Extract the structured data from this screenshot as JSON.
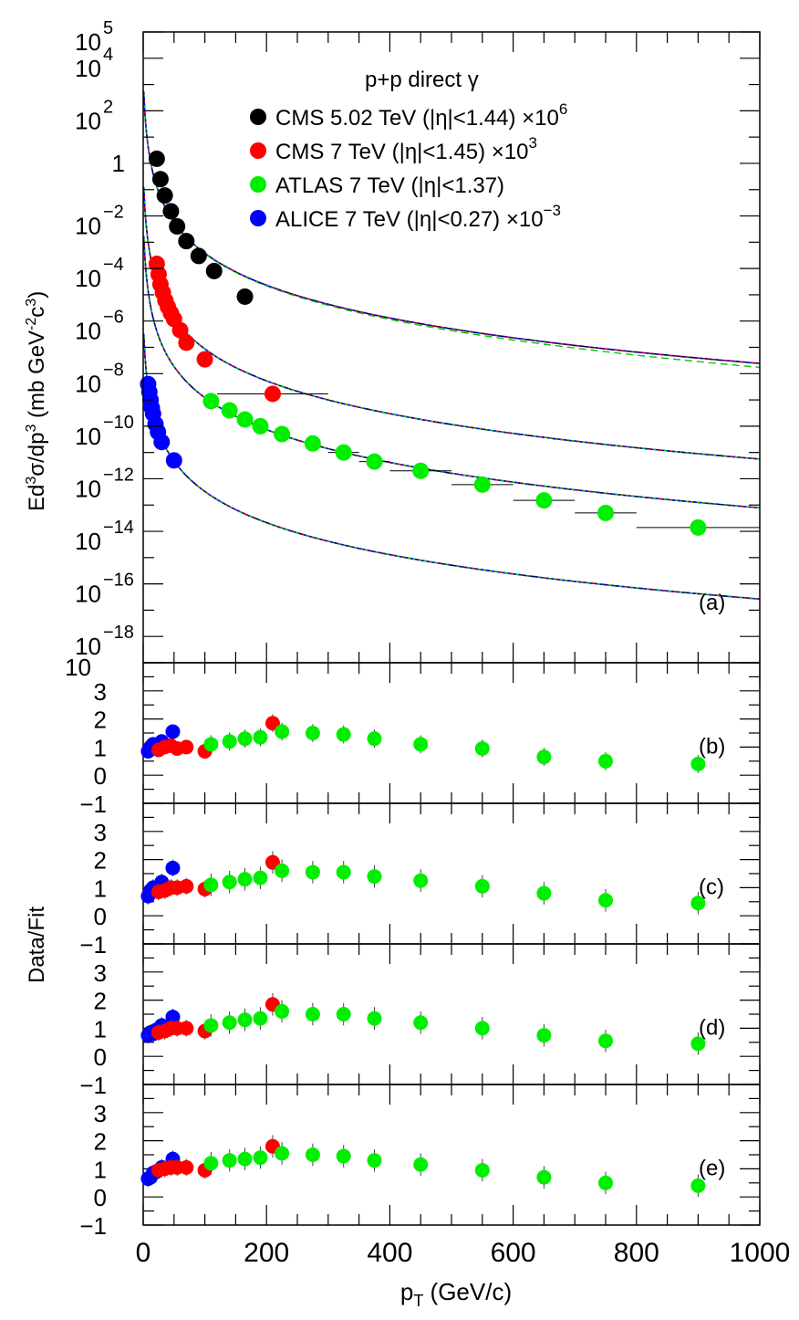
{
  "chart_data": [
    {
      "type": "scatter",
      "panel": "(a)",
      "legend_title": "p+p direct γ",
      "legend_placement": "top-right",
      "ylabel_parts": [
        "Ed",
        "3",
        "σ/dp",
        "3",
        " (mb GeV",
        "-2",
        "c",
        "3",
        ")"
      ],
      "y_scale": "log",
      "ylim": [
        1e-19,
        100000.0
      ],
      "y_ticks": [
        {
          "exp": 5,
          "label": "5"
        },
        {
          "exp": 4,
          "label": "4"
        },
        {
          "exp": 2,
          "label": "2"
        },
        {
          "exp": 0,
          "label": "1"
        },
        {
          "exp": -2,
          "label": "−2"
        },
        {
          "exp": -4,
          "label": "−4"
        },
        {
          "exp": -6,
          "label": "−6"
        },
        {
          "exp": -8,
          "label": "−8"
        },
        {
          "exp": -10,
          "label": "−10"
        },
        {
          "exp": -12,
          "label": "−12"
        },
        {
          "exp": -14,
          "label": "−14"
        },
        {
          "exp": -16,
          "label": "−16"
        },
        {
          "exp": -18,
          "label": "−18"
        }
      ],
      "y_tick_base": "10",
      "series": [
        {
          "name": "CMS 5.02 TeV (|η|<1.44) ×10",
          "name_sup": "6",
          "color": "#000000",
          "points": [
            {
              "x": 22,
              "y": 1.5
            },
            {
              "x": 28,
              "y": 0.25
            },
            {
              "x": 35,
              "y": 0.06
            },
            {
              "x": 45,
              "y": 0.015
            },
            {
              "x": 55,
              "y": 0.004
            },
            {
              "x": 70,
              "y": 0.0011
            },
            {
              "x": 90,
              "y": 0.0003
            },
            {
              "x": 115,
              "y": 8e-05
            },
            {
              "x": 165,
              "y": 8.5e-06
            }
          ]
        },
        {
          "name": "CMS 7 TeV (|η|<1.45) ×10",
          "name_sup": "3",
          "color": "#ff0000",
          "points": [
            {
              "x": 22,
              "y": 0.00015
            },
            {
              "x": 25,
              "y": 6e-05
            },
            {
              "x": 28,
              "y": 2.5e-05
            },
            {
              "x": 32,
              "y": 1.2e-05
            },
            {
              "x": 36,
              "y": 6e-06
            },
            {
              "x": 40,
              "y": 3.5e-06
            },
            {
              "x": 45,
              "y": 2e-06
            },
            {
              "x": 50,
              "y": 1.2e-06
            },
            {
              "x": 60,
              "y": 4.5e-07
            },
            {
              "x": 70,
              "y": 1.5e-07
            },
            {
              "x": 100,
              "y": 3.5e-08
            },
            {
              "x": 210,
              "y": 1.7e-09,
              "xerr": 90
            }
          ]
        },
        {
          "name": "ATLAS 7 TeV (|η|<1.37)",
          "name_sup": "",
          "color": "#00ee00",
          "points": [
            {
              "x": 110,
              "y": 9e-10
            },
            {
              "x": 140,
              "y": 4e-10
            },
            {
              "x": 165,
              "y": 1.8e-10
            },
            {
              "x": 190,
              "y": 1e-10
            },
            {
              "x": 225,
              "y": 5e-11
            },
            {
              "x": 275,
              "y": 2.2e-11
            },
            {
              "x": 325,
              "y": 1e-11,
              "xerr": 25
            },
            {
              "x": 375,
              "y": 4.5e-12,
              "xerr": 25
            },
            {
              "x": 450,
              "y": 2e-12,
              "xerr": 50
            },
            {
              "x": 550,
              "y": 6e-13,
              "xerr": 50
            },
            {
              "x": 650,
              "y": 1.5e-13,
              "xerr": 50
            },
            {
              "x": 750,
              "y": 5e-14,
              "xerr": 50
            },
            {
              "x": 900,
              "y": 1.4e-14,
              "xerr": 100
            }
          ]
        },
        {
          "name": "ALICE 7 TeV (|η|<0.27) ×10",
          "name_sup": "−3",
          "color": "#0000ff",
          "points": [
            {
              "x": 8,
              "y": 4e-09
            },
            {
              "x": 10,
              "y": 2e-09
            },
            {
              "x": 12,
              "y": 1e-09
            },
            {
              "x": 14,
              "y": 5e-10
            },
            {
              "x": 16,
              "y": 3e-10
            },
            {
              "x": 20,
              "y": 1.2e-10
            },
            {
              "x": 24,
              "y": 6e-11
            },
            {
              "x": 30,
              "y": 2.5e-11
            },
            {
              "x": 50,
              "y": 5e-12
            }
          ]
        }
      ]
    },
    {
      "type": "scatter",
      "panel": "(b)",
      "ylim": [
        -1,
        4
      ],
      "points": [
        {
          "x": 8,
          "y": 0.85,
          "c": "#0000ff"
        },
        {
          "x": 12,
          "y": 1.0,
          "c": "#0000ff"
        },
        {
          "x": 16,
          "y": 1.1,
          "c": "#0000ff"
        },
        {
          "x": 22,
          "y": 1.0,
          "c": "#0000ff"
        },
        {
          "x": 30,
          "y": 1.2,
          "c": "#0000ff"
        },
        {
          "x": 48,
          "y": 1.55,
          "c": "#0000ff"
        },
        {
          "x": 25,
          "y": 0.9,
          "c": "#ff0000"
        },
        {
          "x": 35,
          "y": 1.0,
          "c": "#ff0000"
        },
        {
          "x": 45,
          "y": 1.05,
          "c": "#ff0000"
        },
        {
          "x": 55,
          "y": 0.95,
          "c": "#ff0000"
        },
        {
          "x": 70,
          "y": 1.0,
          "c": "#ff0000"
        },
        {
          "x": 100,
          "y": 0.85,
          "c": "#ff0000"
        },
        {
          "x": 210,
          "y": 1.85,
          "c": "#ff0000"
        },
        {
          "x": 110,
          "y": 1.1,
          "c": "#00ee00"
        },
        {
          "x": 140,
          "y": 1.2,
          "c": "#00ee00"
        },
        {
          "x": 165,
          "y": 1.3,
          "c": "#00ee00"
        },
        {
          "x": 190,
          "y": 1.35,
          "c": "#00ee00"
        },
        {
          "x": 225,
          "y": 1.55,
          "c": "#00ee00"
        },
        {
          "x": 275,
          "y": 1.5,
          "c": "#00ee00"
        },
        {
          "x": 325,
          "y": 1.45,
          "c": "#00ee00"
        },
        {
          "x": 375,
          "y": 1.3,
          "c": "#00ee00"
        },
        {
          "x": 450,
          "y": 1.1,
          "c": "#00ee00"
        },
        {
          "x": 550,
          "y": 0.95,
          "c": "#00ee00"
        },
        {
          "x": 650,
          "y": 0.65,
          "c": "#00ee00"
        },
        {
          "x": 750,
          "y": 0.5,
          "c": "#00ee00"
        },
        {
          "x": 900,
          "y": 0.4,
          "c": "#00ee00"
        }
      ]
    },
    {
      "type": "scatter",
      "panel": "(c)",
      "ylabel": "Data/Fit",
      "ylim": [
        -1,
        4
      ],
      "points": [
        {
          "x": 8,
          "y": 0.7,
          "c": "#0000ff"
        },
        {
          "x": 12,
          "y": 0.9,
          "c": "#0000ff"
        },
        {
          "x": 16,
          "y": 1.0,
          "c": "#0000ff"
        },
        {
          "x": 22,
          "y": 1.0,
          "c": "#0000ff"
        },
        {
          "x": 30,
          "y": 1.2,
          "c": "#0000ff"
        },
        {
          "x": 48,
          "y": 1.7,
          "c": "#0000ff"
        },
        {
          "x": 25,
          "y": 0.85,
          "c": "#ff0000"
        },
        {
          "x": 35,
          "y": 0.9,
          "c": "#ff0000"
        },
        {
          "x": 45,
          "y": 1.0,
          "c": "#ff0000"
        },
        {
          "x": 55,
          "y": 1.0,
          "c": "#ff0000"
        },
        {
          "x": 70,
          "y": 1.05,
          "c": "#ff0000"
        },
        {
          "x": 100,
          "y": 0.95,
          "c": "#ff0000"
        },
        {
          "x": 210,
          "y": 1.9,
          "c": "#ff0000"
        },
        {
          "x": 110,
          "y": 1.1,
          "c": "#00ee00"
        },
        {
          "x": 140,
          "y": 1.2,
          "c": "#00ee00"
        },
        {
          "x": 165,
          "y": 1.3,
          "c": "#00ee00"
        },
        {
          "x": 190,
          "y": 1.35,
          "c": "#00ee00"
        },
        {
          "x": 225,
          "y": 1.6,
          "c": "#00ee00"
        },
        {
          "x": 275,
          "y": 1.55,
          "c": "#00ee00"
        },
        {
          "x": 325,
          "y": 1.55,
          "c": "#00ee00"
        },
        {
          "x": 375,
          "y": 1.4,
          "c": "#00ee00"
        },
        {
          "x": 450,
          "y": 1.25,
          "c": "#00ee00"
        },
        {
          "x": 550,
          "y": 1.05,
          "c": "#00ee00"
        },
        {
          "x": 650,
          "y": 0.8,
          "c": "#00ee00"
        },
        {
          "x": 750,
          "y": 0.55,
          "c": "#00ee00"
        },
        {
          "x": 900,
          "y": 0.45,
          "c": "#00ee00"
        }
      ]
    },
    {
      "type": "scatter",
      "panel": "(d)",
      "ylim": [
        -1,
        4
      ],
      "points": [
        {
          "x": 8,
          "y": 0.75,
          "c": "#0000ff"
        },
        {
          "x": 12,
          "y": 0.85,
          "c": "#0000ff"
        },
        {
          "x": 16,
          "y": 0.8,
          "c": "#0000ff"
        },
        {
          "x": 22,
          "y": 0.95,
          "c": "#0000ff"
        },
        {
          "x": 30,
          "y": 1.1,
          "c": "#0000ff"
        },
        {
          "x": 48,
          "y": 1.4,
          "c": "#0000ff"
        },
        {
          "x": 25,
          "y": 0.85,
          "c": "#ff0000"
        },
        {
          "x": 35,
          "y": 0.9,
          "c": "#ff0000"
        },
        {
          "x": 45,
          "y": 1.0,
          "c": "#ff0000"
        },
        {
          "x": 55,
          "y": 1.0,
          "c": "#ff0000"
        },
        {
          "x": 70,
          "y": 1.0,
          "c": "#ff0000"
        },
        {
          "x": 100,
          "y": 0.9,
          "c": "#ff0000"
        },
        {
          "x": 210,
          "y": 1.85,
          "c": "#ff0000"
        },
        {
          "x": 110,
          "y": 1.1,
          "c": "#00ee00"
        },
        {
          "x": 140,
          "y": 1.2,
          "c": "#00ee00"
        },
        {
          "x": 165,
          "y": 1.3,
          "c": "#00ee00"
        },
        {
          "x": 190,
          "y": 1.35,
          "c": "#00ee00"
        },
        {
          "x": 225,
          "y": 1.6,
          "c": "#00ee00"
        },
        {
          "x": 275,
          "y": 1.5,
          "c": "#00ee00"
        },
        {
          "x": 325,
          "y": 1.5,
          "c": "#00ee00"
        },
        {
          "x": 375,
          "y": 1.35,
          "c": "#00ee00"
        },
        {
          "x": 450,
          "y": 1.2,
          "c": "#00ee00"
        },
        {
          "x": 550,
          "y": 1.0,
          "c": "#00ee00"
        },
        {
          "x": 650,
          "y": 0.75,
          "c": "#00ee00"
        },
        {
          "x": 750,
          "y": 0.55,
          "c": "#00ee00"
        },
        {
          "x": 900,
          "y": 0.45,
          "c": "#00ee00"
        }
      ]
    },
    {
      "type": "scatter",
      "panel": "(e)",
      "ylim": [
        -1,
        4
      ],
      "xlabel": "p",
      "xlabel_sub": "T",
      "xlabel_rest": " (GeV/c)",
      "xlim": [
        0,
        1000
      ],
      "x_ticks": [
        "0",
        "200",
        "400",
        "600",
        "800",
        "1000"
      ],
      "points": [
        {
          "x": 8,
          "y": 0.65,
          "c": "#0000ff"
        },
        {
          "x": 12,
          "y": 0.7,
          "c": "#0000ff"
        },
        {
          "x": 16,
          "y": 0.85,
          "c": "#0000ff"
        },
        {
          "x": 22,
          "y": 0.9,
          "c": "#0000ff"
        },
        {
          "x": 30,
          "y": 1.05,
          "c": "#0000ff"
        },
        {
          "x": 48,
          "y": 1.35,
          "c": "#0000ff"
        },
        {
          "x": 25,
          "y": 0.95,
          "c": "#ff0000"
        },
        {
          "x": 35,
          "y": 1.0,
          "c": "#ff0000"
        },
        {
          "x": 45,
          "y": 1.05,
          "c": "#ff0000"
        },
        {
          "x": 55,
          "y": 1.05,
          "c": "#ff0000"
        },
        {
          "x": 70,
          "y": 1.05,
          "c": "#ff0000"
        },
        {
          "x": 100,
          "y": 0.95,
          "c": "#ff0000"
        },
        {
          "x": 210,
          "y": 1.8,
          "c": "#ff0000"
        },
        {
          "x": 110,
          "y": 1.2,
          "c": "#00ee00"
        },
        {
          "x": 140,
          "y": 1.3,
          "c": "#00ee00"
        },
        {
          "x": 165,
          "y": 1.35,
          "c": "#00ee00"
        },
        {
          "x": 190,
          "y": 1.4,
          "c": "#00ee00"
        },
        {
          "x": 225,
          "y": 1.55,
          "c": "#00ee00"
        },
        {
          "x": 275,
          "y": 1.5,
          "c": "#00ee00"
        },
        {
          "x": 325,
          "y": 1.45,
          "c": "#00ee00"
        },
        {
          "x": 375,
          "y": 1.3,
          "c": "#00ee00"
        },
        {
          "x": 450,
          "y": 1.15,
          "c": "#00ee00"
        },
        {
          "x": 550,
          "y": 0.95,
          "c": "#00ee00"
        },
        {
          "x": 650,
          "y": 0.7,
          "c": "#00ee00"
        },
        {
          "x": 750,
          "y": 0.5,
          "c": "#00ee00"
        },
        {
          "x": 900,
          "y": 0.4,
          "c": "#00ee00"
        }
      ]
    }
  ],
  "ratio_tick_labels": [
    "3",
    "2",
    "1",
    "0",
    "−1"
  ]
}
